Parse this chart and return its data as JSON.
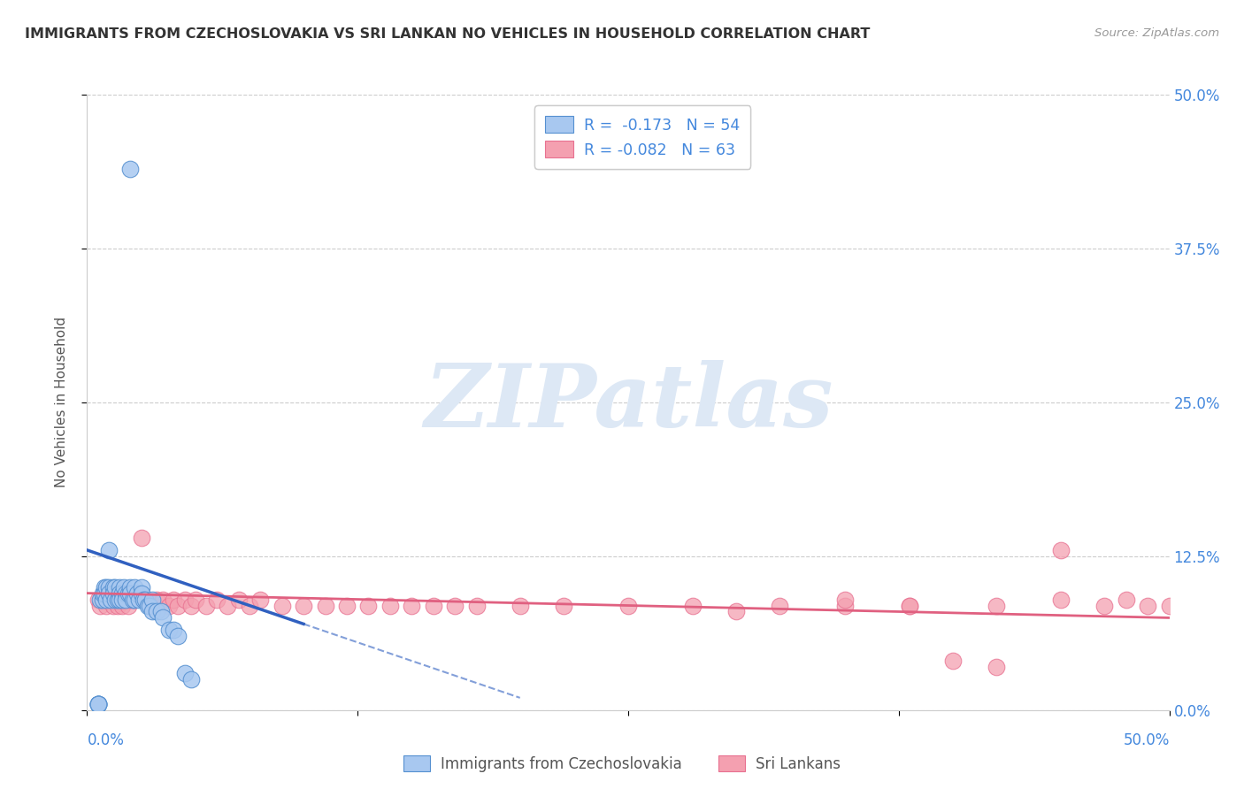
{
  "title": "IMMIGRANTS FROM CZECHOSLOVAKIA VS SRI LANKAN NO VEHICLES IN HOUSEHOLD CORRELATION CHART",
  "source": "Source: ZipAtlas.com",
  "ylabel": "No Vehicles in Household",
  "ytick_labels": [
    "0.0%",
    "12.5%",
    "25.0%",
    "37.5%",
    "50.0%"
  ],
  "ytick_values": [
    0.0,
    0.125,
    0.25,
    0.375,
    0.5
  ],
  "xtick_labels": [
    "0.0%",
    "50.0%"
  ],
  "xtick_values": [
    0.0,
    0.5
  ],
  "xlim": [
    0.0,
    0.5
  ],
  "ylim": [
    0.0,
    0.5
  ],
  "watermark": "ZIPatlas",
  "color_blue": "#a8c8f0",
  "color_pink": "#f4a0b0",
  "edge_blue": "#5590d0",
  "edge_pink": "#e87090",
  "trendline_blue": "#3060c0",
  "trendline_pink": "#e06080",
  "legend1_label": "R =  -0.173   N = 54",
  "legend2_label": "R = -0.082   N = 63",
  "bottom_legend1": "Immigrants from Czechoslovakia",
  "bottom_legend2": "Sri Lankans",
  "blue_scatter_x": [
    0.005,
    0.005,
    0.005,
    0.005,
    0.005,
    0.006,
    0.007,
    0.007,
    0.008,
    0.008,
    0.009,
    0.009,
    0.01,
    0.01,
    0.01,
    0.011,
    0.012,
    0.012,
    0.013,
    0.013,
    0.014,
    0.015,
    0.015,
    0.015,
    0.016,
    0.016,
    0.017,
    0.018,
    0.018,
    0.019,
    0.02,
    0.02,
    0.021,
    0.022,
    0.022,
    0.023,
    0.024,
    0.025,
    0.025,
    0.026,
    0.027,
    0.028,
    0.029,
    0.03,
    0.03,
    0.032,
    0.034,
    0.035,
    0.038,
    0.04,
    0.042,
    0.045,
    0.048,
    0.02
  ],
  "blue_scatter_y": [
    0.005,
    0.005,
    0.005,
    0.005,
    0.005,
    0.09,
    0.09,
    0.095,
    0.1,
    0.095,
    0.09,
    0.1,
    0.13,
    0.1,
    0.095,
    0.09,
    0.1,
    0.095,
    0.09,
    0.1,
    0.09,
    0.1,
    0.095,
    0.09,
    0.095,
    0.09,
    0.1,
    0.095,
    0.09,
    0.095,
    0.1,
    0.095,
    0.09,
    0.1,
    0.09,
    0.095,
    0.09,
    0.1,
    0.095,
    0.09,
    0.09,
    0.085,
    0.085,
    0.09,
    0.08,
    0.08,
    0.08,
    0.075,
    0.065,
    0.065,
    0.06,
    0.03,
    0.025,
    0.44
  ],
  "pink_scatter_x": [
    0.005,
    0.006,
    0.007,
    0.008,
    0.009,
    0.01,
    0.011,
    0.012,
    0.013,
    0.014,
    0.015,
    0.016,
    0.017,
    0.018,
    0.019,
    0.02,
    0.022,
    0.025,
    0.028,
    0.03,
    0.032,
    0.035,
    0.038,
    0.04,
    0.042,
    0.045,
    0.048,
    0.05,
    0.055,
    0.06,
    0.065,
    0.07,
    0.075,
    0.08,
    0.09,
    0.1,
    0.11,
    0.12,
    0.13,
    0.14,
    0.15,
    0.16,
    0.17,
    0.18,
    0.2,
    0.22,
    0.25,
    0.28,
    0.3,
    0.32,
    0.35,
    0.38,
    0.4,
    0.42,
    0.45,
    0.47,
    0.48,
    0.49,
    0.5,
    0.35,
    0.38,
    0.42,
    0.45
  ],
  "pink_scatter_y": [
    0.09,
    0.085,
    0.09,
    0.09,
    0.085,
    0.09,
    0.09,
    0.085,
    0.09,
    0.085,
    0.09,
    0.085,
    0.09,
    0.09,
    0.085,
    0.09,
    0.09,
    0.14,
    0.09,
    0.085,
    0.09,
    0.09,
    0.085,
    0.09,
    0.085,
    0.09,
    0.085,
    0.09,
    0.085,
    0.09,
    0.085,
    0.09,
    0.085,
    0.09,
    0.085,
    0.085,
    0.085,
    0.085,
    0.085,
    0.085,
    0.085,
    0.085,
    0.085,
    0.085,
    0.085,
    0.085,
    0.085,
    0.085,
    0.08,
    0.085,
    0.085,
    0.085,
    0.04,
    0.035,
    0.09,
    0.085,
    0.09,
    0.085,
    0.085,
    0.09,
    0.085,
    0.085,
    0.13
  ]
}
